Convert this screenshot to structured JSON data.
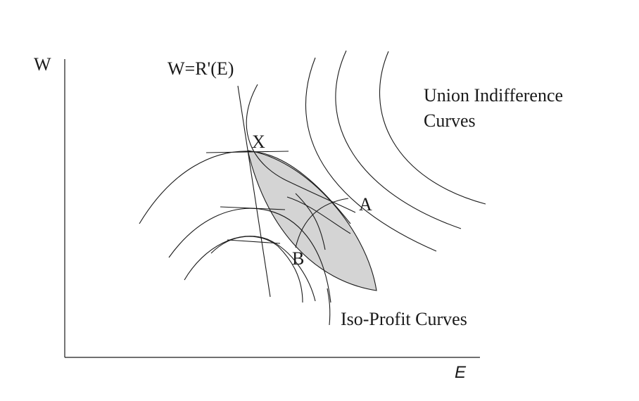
{
  "axes": {
    "y_label": "W",
    "x_label": "E"
  },
  "labels": {
    "demand_curve": "W=R'(E)",
    "point_x": "X",
    "point_a": "A",
    "point_b": "B",
    "union_line1": "Union Indifference",
    "union_line2": "Curves",
    "isoprofit": "Iso-Profit Curves"
  },
  "colors": {
    "contract_region_fill": "#d4d4d4",
    "line": "#1a1a1a"
  }
}
